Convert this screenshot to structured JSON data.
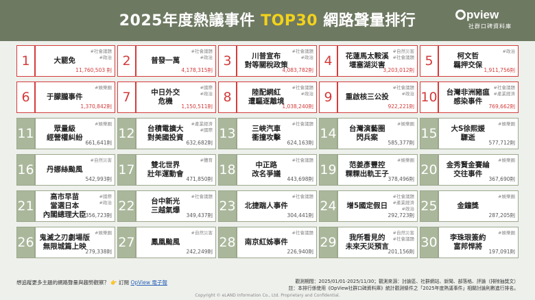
{
  "header": {
    "title_before": "2025年度熱議事件 ",
    "title_highlight": "TOP30",
    "title_after": " 網路聲量排行",
    "logo_name": "pview",
    "logo_sub": "社群口碑資料庫"
  },
  "items": [
    {
      "rank": "1",
      "name": "大罷免",
      "tags": "#社會議題\n#政治",
      "volume": "11,760,503 則"
    },
    {
      "rank": "2",
      "name": "普發一萬",
      "tags": "#社會議題\n#政治",
      "volume": "4,178,315則"
    },
    {
      "rank": "3",
      "name": "川普宣布\n對等關稅政策",
      "tags": "#社會議題\n#政治",
      "volume": "4,083,782則"
    },
    {
      "rank": "4",
      "name": "花蓮馬太鞍溪\n堰塞湖災害",
      "tags": "#自然災害\n#社會議題",
      "volume": "3,203,012則"
    },
    {
      "rank": "5",
      "name": "柯文哲\n羈押交保",
      "tags": "#政治",
      "volume": "1,911,756則"
    },
    {
      "rank": "6",
      "name": "于朦朧事件",
      "tags": "#娛樂圈",
      "volume": "1,370,842則"
    },
    {
      "rank": "7",
      "name": "中日外交\n危機",
      "tags": "#國際\n#政治",
      "volume": "1,150,511則"
    },
    {
      "rank": "8",
      "name": "陸配網紅\n遭驅逐離境",
      "tags": "#社會議題\n#政治",
      "volume": "1,038,240則"
    },
    {
      "rank": "9",
      "name": "重啟核三公投",
      "tags": "#社會議題\n#政治",
      "volume": "922,221則"
    },
    {
      "rank": "10",
      "name": "台灣非洲豬瘟\n感染事件",
      "tags": "#社會議題\n#產業經濟",
      "volume": "769,662則"
    },
    {
      "rank": "11",
      "name": "眾量級\n經營權糾紛",
      "tags": "#娛樂圈",
      "volume": "661,641則"
    },
    {
      "rank": "12",
      "name": "台積電擴大\n對美國投資",
      "tags": "#產業經濟\n#國際",
      "volume": "632,682則"
    },
    {
      "rank": "13",
      "name": "三峽汽車\n衝撞攻擊",
      "tags": "#社會議題",
      "volume": "624,163則"
    },
    {
      "rank": "14",
      "name": "台灣演藝圈\n閃兵案",
      "tags": "#娛樂圈",
      "volume": "585,377則"
    },
    {
      "rank": "15",
      "name": "大S徐熙媛\n驟逝",
      "tags": "#娛樂圈",
      "volume": "577,712則"
    },
    {
      "rank": "16",
      "name": "丹娜絲颱風",
      "tags": "#自然災害",
      "volume": "542,993則"
    },
    {
      "rank": "17",
      "name": "雙北世界\n壯年運動會",
      "tags": "#體育",
      "volume": "471,850則"
    },
    {
      "rank": "18",
      "name": "中正路\n改名爭議",
      "tags": "#社會議題",
      "volume": "443,698則"
    },
    {
      "rank": "19",
      "name": "范姜彥豐控\n粿粿出軌王子",
      "tags": "#娛樂圈",
      "volume": "378,496則"
    },
    {
      "rank": "20",
      "name": "金秀賢金賽綸\n交往事件",
      "tags": "#娛樂圈",
      "volume": "367,690則"
    },
    {
      "rank": "21",
      "name": "高市早苗\n當選日本\n內閣總理大臣",
      "tags": "#國際\n#政治",
      "volume": "356,723則"
    },
    {
      "rank": "22",
      "name": "台中新光\n三越氣爆",
      "tags": "#社會議題",
      "volume": "349,437則"
    },
    {
      "rank": "23",
      "name": "北捷踹人事件",
      "tags": "#社會議題",
      "volume": "304,441則"
    },
    {
      "rank": "24",
      "name": "增5國定假日",
      "tags": "#社會議題\n#產業經濟\n#政治",
      "volume": "292,723則"
    },
    {
      "rank": "25",
      "name": "金鐘獎",
      "tags": "#娛樂圈",
      "volume": "287,205則"
    },
    {
      "rank": "26",
      "name": "鬼滅之刃劇場版\n無限城篇上映",
      "tags": "#娛樂圈",
      "volume": "279,338則"
    },
    {
      "rank": "27",
      "name": "鳳凰颱風",
      "tags": "#自然災害",
      "volume": "242,249則"
    },
    {
      "rank": "28",
      "name": "南京紅姊事件",
      "tags": "#社會議題",
      "volume": "226,940則"
    },
    {
      "rank": "29",
      "name": "我所看見的\n未來天災預言",
      "tags": "#自然災害\n#社會議題",
      "volume": "201,156則"
    },
    {
      "rank": "30",
      "name": "李珠珢簽約\n富邦悍將",
      "tags": "#娛樂圈",
      "volume": "197,091則"
    }
  ],
  "footer": {
    "question": "想追蹤更多主題的網路聲量與趨勢觀察？",
    "hand": "👉",
    "subscribe": " 訂閱 ",
    "link": "OpView 電子報",
    "note1": "觀測期間：2025/01/01-2025/11/30；觀測來源：討論區、社群網站、新聞、部落格、評論（排除抽獎文）",
    "note2": "註：本排行係使用《OpView社群口碑資料庫》統計觀測條件之「2025年度熱議事件」相關討論則數進行排名。",
    "copyright": "Copyright © eLAND Information Co., Ltd. Proprietary and Confidential."
  },
  "colors": {
    "header_bg": "#6e7962",
    "top10_border": "#d43a3a",
    "rest_border": "#9aa78b",
    "highlight": "#f3d21b"
  }
}
